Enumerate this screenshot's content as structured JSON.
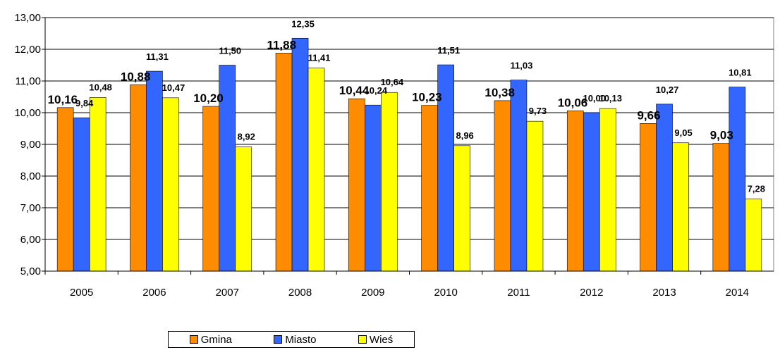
{
  "chart_data": {
    "type": "bar",
    "title": "",
    "xlabel": "",
    "ylabel": "",
    "categories": [
      "2005",
      "2006",
      "2007",
      "2008",
      "2009",
      "2010",
      "2011",
      "2012",
      "2013",
      "2014"
    ],
    "ylim": [
      5,
      13
    ],
    "yticks": [
      "5,00",
      "6,00",
      "7,00",
      "8,00",
      "9,00",
      "10,00",
      "11,00",
      "12,00",
      "13,00"
    ],
    "grid": true,
    "legend_position": "bottom",
    "series": [
      {
        "name": "Gmina",
        "color": "#FF8C00",
        "values": [
          10.16,
          10.88,
          10.2,
          11.88,
          10.44,
          10.23,
          10.38,
          10.06,
          9.66,
          9.03
        ],
        "labels": [
          "10,16",
          "10,88",
          "10,20",
          "11,88",
          "10,44",
          "10,23",
          "10,38",
          "10,06",
          "9,66",
          "9,03"
        ]
      },
      {
        "name": "Miasto",
        "color": "#3366FF",
        "values": [
          9.84,
          11.31,
          11.5,
          12.35,
          10.24,
          11.51,
          11.03,
          10.0,
          10.27,
          10.81
        ],
        "labels": [
          "9,84",
          "11,31",
          "11,50",
          "12,35",
          "10,24",
          "11,51",
          "11,03",
          "10,00",
          "10,27",
          "10,81"
        ]
      },
      {
        "name": "Wieś",
        "color": "#FFFF00",
        "values": [
          10.48,
          10.47,
          8.92,
          11.41,
          10.64,
          8.96,
          9.73,
          10.13,
          9.05,
          7.28
        ],
        "labels": [
          "10,48",
          "10,47",
          "8,92",
          "11,41",
          "10,64",
          "8,96",
          "9,73",
          "10,13",
          "9,05",
          "7,28"
        ]
      }
    ]
  },
  "legend": {
    "items": [
      {
        "label": "Gmina",
        "color": "#FF8C00"
      },
      {
        "label": "Miasto",
        "color": "#3366FF"
      },
      {
        "label": "Wieś",
        "color": "#FFFF00"
      }
    ]
  }
}
